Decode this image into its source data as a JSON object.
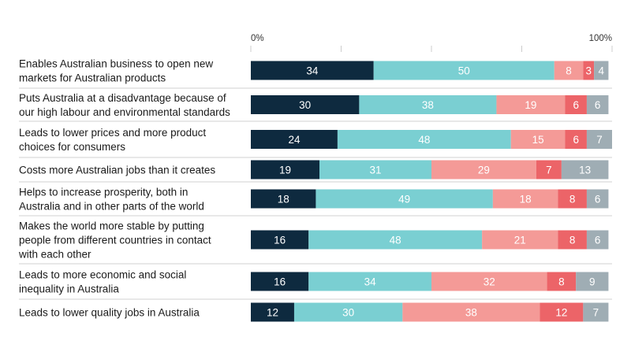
{
  "chart_data": {
    "type": "bar",
    "orientation": "horizontal",
    "stacked": true,
    "xlim": [
      0,
      100
    ],
    "axis": {
      "min_label": "0%",
      "max_label": "100%"
    },
    "legend": "none",
    "categories": [
      [
        "Enables Australian business to open new",
        "markets for Australian products"
      ],
      [
        "Puts Australia at a disadvantage because of",
        "our high labour and environmental standards"
      ],
      [
        "Leads to lower prices and more product",
        "choices for consumers"
      ],
      [
        "Costs more Australian jobs than it creates"
      ],
      [
        "Helps to increase prosperity, both in",
        "Australia and in other parts of the world"
      ],
      [
        "Makes the world more stable by putting",
        "people from different countries in contact",
        "with each other"
      ],
      [
        "Leads to more economic and social",
        "inequality in Australia"
      ],
      [
        "Leads to lower quality jobs in Australia"
      ]
    ],
    "series": [
      {
        "color": "#0e2a3f",
        "text_color": "#ffffff",
        "values": [
          34,
          30,
          24,
          19,
          18,
          16,
          16,
          12
        ]
      },
      {
        "color": "#7acfd2",
        "text_color": "#ffffff",
        "values": [
          50,
          38,
          48,
          31,
          49,
          48,
          34,
          30
        ]
      },
      {
        "color": "#f49a97",
        "text_color": "#ffffff",
        "values": [
          8,
          19,
          15,
          29,
          18,
          21,
          32,
          38
        ]
      },
      {
        "color": "#ec6468",
        "text_color": "#ffffff",
        "values": [
          3,
          6,
          6,
          7,
          8,
          8,
          8,
          12
        ]
      },
      {
        "color": "#9fadb4",
        "text_color": "#ffffff",
        "values": [
          4,
          6,
          7,
          13,
          6,
          6,
          9,
          7
        ]
      }
    ],
    "gridline_color": "#cccccc",
    "separator_color": "#d0d0d0"
  }
}
